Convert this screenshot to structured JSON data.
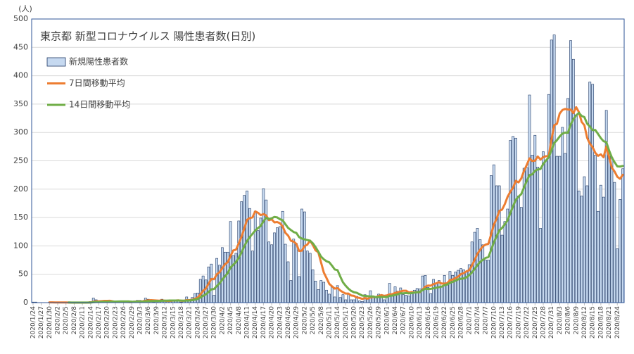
{
  "chart_data": {
    "type": "bar",
    "title": "東京都 新型コロナウイルス 陽性患者数(日別)",
    "y_axis_label": "(人)",
    "ylim": [
      0,
      500
    ],
    "yticks": [
      0,
      50,
      100,
      150,
      200,
      250,
      300,
      350,
      400,
      450,
      500
    ],
    "grid": true,
    "categories": [
      "2020/1/24",
      null,
      null,
      "2020/1/27",
      null,
      null,
      "2020/1/30",
      null,
      null,
      "2020/2/2",
      null,
      null,
      "2020/2/5",
      null,
      null,
      "2020/2/8",
      null,
      null,
      "2020/2/11",
      null,
      null,
      "2020/2/14",
      null,
      null,
      "2020/2/17",
      null,
      null,
      "2020/2/20",
      null,
      null,
      "2020/2/23",
      null,
      null,
      "2020/2/26",
      null,
      null,
      "2020/2/29",
      null,
      null,
      "2020/3/3",
      null,
      null,
      "2020/3/6",
      null,
      null,
      "2020/3/9",
      null,
      null,
      "2020/3/12",
      null,
      null,
      "2020/3/15",
      null,
      null,
      "2020/3/18",
      null,
      null,
      "2020/3/21",
      null,
      null,
      "2020/3/24",
      null,
      null,
      "2020/3/27",
      null,
      null,
      "2020/3/30",
      null,
      null,
      "2020/4/2",
      null,
      null,
      "2020/4/5",
      null,
      null,
      "2020/4/8",
      null,
      null,
      "2020/4/11",
      null,
      null,
      "2020/4/14",
      null,
      null,
      "2020/4/17",
      null,
      null,
      "2020/4/20",
      null,
      null,
      "2020/4/23",
      null,
      null,
      "2020/4/26",
      null,
      null,
      "2020/4/29",
      null,
      null,
      "2020/5/2",
      null,
      null,
      "2020/5/5",
      null,
      null,
      "2020/5/8",
      null,
      null,
      "2020/5/11",
      null,
      null,
      "2020/5/14",
      null,
      null,
      "2020/5/17",
      null,
      null,
      "2020/5/20",
      null,
      null,
      "2020/5/23",
      null,
      null,
      "2020/5/26",
      null,
      null,
      "2020/5/29",
      null,
      null,
      "2020/6/1",
      null,
      null,
      "2020/6/4",
      null,
      null,
      "2020/6/7",
      null,
      null,
      "2020/6/10",
      null,
      null,
      "2020/6/13",
      null,
      null,
      "2020/6/16",
      null,
      null,
      "2020/6/19",
      null,
      null,
      "2020/6/22",
      null,
      null,
      "2020/6/25",
      null,
      null,
      "2020/6/28",
      null,
      null,
      "2020/7/1",
      null,
      null,
      "2020/7/4",
      null,
      null,
      "2020/7/7",
      null,
      null,
      "2020/7/10",
      null,
      null,
      "2020/7/13",
      null,
      null,
      "2020/7/16",
      null,
      null,
      "2020/7/19",
      null,
      null,
      "2020/7/22",
      null,
      null,
      "2020/7/25",
      null,
      null,
      "2020/7/28",
      null,
      null,
      "2020/7/31",
      null,
      null,
      "2020/8/3",
      null,
      null,
      "2020/8/6",
      null,
      null,
      "2020/8/9",
      null,
      null,
      "2020/8/12",
      null,
      null,
      "2020/8/15",
      null,
      null,
      "2020/8/18",
      null,
      null,
      "2020/8/21",
      null,
      null,
      "2020/8/24",
      null,
      null
    ],
    "series": [
      {
        "name": "新規陽性患者数",
        "type": "bar",
        "color": "#c6d9f0",
        "edge_color": "#1f3864",
        "values": [
          1,
          1,
          0,
          0,
          0,
          0,
          1,
          1,
          0,
          0,
          0,
          0,
          0,
          0,
          0,
          0,
          0,
          0,
          0,
          0,
          1,
          2,
          8,
          5,
          0,
          3,
          3,
          1,
          3,
          1,
          0,
          1,
          3,
          0,
          1,
          1,
          2,
          3,
          4,
          4,
          2,
          8,
          6,
          3,
          1,
          2,
          2,
          6,
          4,
          2,
          5,
          4,
          3,
          4,
          1,
          4,
          10,
          4,
          9,
          16,
          17,
          41,
          47,
          40,
          63,
          68,
          13,
          78,
          66,
          97,
          89,
          89,
          143,
          83,
          87,
          144,
          178,
          189,
          197,
          166,
          91,
          161,
          127,
          149,
          201,
          181,
          107,
          102,
          123,
          132,
          134,
          161,
          103,
          72,
          39,
          112,
          104,
          46,
          165,
          160,
          91,
          87,
          58,
          38,
          23,
          39,
          36,
          22,
          15,
          28,
          10,
          30,
          9,
          14,
          5,
          15,
          5,
          5,
          11,
          3,
          2,
          14,
          8,
          21,
          10,
          11,
          15,
          14,
          5,
          13,
          34,
          12,
          28,
          20,
          26,
          14,
          13,
          12,
          18,
          22,
          25,
          24,
          47,
          48,
          27,
          16,
          41,
          35,
          39,
          29,
          48,
          31,
          55,
          48,
          54,
          57,
          60,
          58,
          54,
          67,
          107,
          124,
          131,
          111,
          102,
          75,
          75,
          224,
          243,
          206,
          206,
          119,
          143,
          165,
          286,
          293,
          290,
          188,
          168,
          237,
          238,
          366,
          260,
          295,
          239,
          131,
          266,
          250,
          367,
          463,
          472,
          258,
          258,
          309,
          263,
          360,
          462,
          429,
          331,
          197,
          188,
          222,
          206,
          389,
          385,
          260,
          161,
          207,
          186,
          339,
          258,
          256,
          212,
          95,
          182,
          236
        ]
      },
      {
        "name": "7日間移動平均",
        "type": "line",
        "color": "#ed7d31",
        "values": [
          null,
          null,
          null,
          null,
          null,
          null,
          0.4,
          0.4,
          0.3,
          0.3,
          0.3,
          0.3,
          0.3,
          0.1,
          0,
          0,
          0,
          0,
          0,
          0,
          0.1,
          0.4,
          1.6,
          2.3,
          2.3,
          2.7,
          3.1,
          3.1,
          3.3,
          2.3,
          1.6,
          1.7,
          1.7,
          1.3,
          1.3,
          1,
          1.1,
          1.6,
          2,
          2.1,
          2.4,
          3.4,
          4.1,
          4.3,
          4,
          3.7,
          3.4,
          4,
          3.4,
          2.9,
          3.1,
          3.6,
          3.7,
          4,
          3.3,
          3.3,
          4.4,
          4.3,
          5,
          6.9,
          8.7,
          14.4,
          20.6,
          24.9,
          33.3,
          41.7,
          41.3,
          50,
          53.6,
          60.7,
          67.7,
          71.4,
          82.1,
          92.1,
          93.4,
          104.6,
          116.1,
          130.4,
          145.9,
          149.1,
          150.3,
          160.9,
          158.4,
          154.3,
          156,
          153.7,
          145.3,
          146.9,
          141.4,
          142.1,
          140,
          134.3,
          123.1,
          118.1,
          109.1,
          107.6,
          103.6,
          91,
          91.6,
          99.7,
          102.4,
          109.3,
          101.6,
          92.1,
          88.9,
          70.9,
          53.1,
          43.3,
          33,
          28.7,
          24.7,
          25.7,
          21.4,
          18.3,
          15.9,
          15.9,
          12.6,
          11.9,
          9.1,
          8.3,
          6.6,
          7.9,
          6.9,
          9.1,
          9.9,
          9.9,
          11.6,
          13.3,
          12,
          12.7,
          14.6,
          14.9,
          17.3,
          18,
          19.7,
          21,
          21,
          17.9,
          18.7,
          17.9,
          18.6,
          18.3,
          23,
          28,
          30.1,
          29.9,
          32.6,
          34,
          36.1,
          33.6,
          33.6,
          34.1,
          39.7,
          40.7,
          43.4,
          46,
          50.4,
          51.9,
          55.1,
          56.9,
          65.3,
          75.3,
          85.9,
          93.1,
          99.4,
          102.4,
          103.6,
          120.3,
          137.3,
          148,
          161.6,
          164,
          173.7,
          186.6,
          195.4,
          202.6,
          214.6,
          212,
          219,
          232.4,
          242.9,
          254.3,
          249.6,
          250.3,
          257.6,
          252.3,
          256.4,
          258.1,
          258.3,
          287.3,
          312.6,
          315.3,
          333.4,
          339.6,
          341.4,
          340.4,
          340.3,
          334.1,
          344.6,
          335.9,
          318.6,
          312.7,
          290.7,
          280.3,
          274,
          263.9,
          258.7,
          261.4,
          256.3,
          275.3,
          256.6,
          238.1,
          231.3,
          221.9,
          218.3,
          225.4
        ]
      },
      {
        "name": "14日間移動平均",
        "type": "line",
        "color": "#70ad47",
        "values": [
          null,
          null,
          null,
          null,
          null,
          null,
          null,
          null,
          null,
          null,
          null,
          null,
          null,
          0.3,
          0.2,
          0.1,
          0.1,
          0.1,
          0.1,
          0.1,
          0.1,
          0.2,
          0.8,
          1.1,
          1.1,
          1.4,
          1.6,
          1.6,
          1.9,
          1.9,
          1.9,
          2,
          2.2,
          2.2,
          2.2,
          2.1,
          1.7,
          1.6,
          1.9,
          1.9,
          1.9,
          2.4,
          2.6,
          2.7,
          2.8,
          2.9,
          2.8,
          3.2,
          3.4,
          3.5,
          3.7,
          3.8,
          3.7,
          3.7,
          3.6,
          3.4,
          3.6,
          3.7,
          4.3,
          5.3,
          6.4,
          8.9,
          11.9,
          14.6,
          18.8,
          23.4,
          24.1,
          29.4,
          34,
          40.6,
          46.3,
          52.4,
          61.9,
          66.7,
          71.7,
          79.1,
          88.4,
          99.1,
          108.6,
          115.6,
          121.2,
          127.1,
          131.5,
          135.2,
          143.2,
          149.8,
          147.2,
          148.6,
          151.1,
          150.3,
          147.1,
          145.1,
          138.4,
          131.7,
          128,
          124.5,
          122.9,
          115.5,
          112.9,
          111.4,
          110.3,
          109.2,
          104.6,
          97.9,
          89.9,
          81.2,
          76.4,
          72.9,
          71.1,
          65.1,
          58.4,
          57.3,
          46.1,
          35.7,
          29.6,
          24.4,
          20.6,
          18.3,
          17.4,
          14.9,
          12.4,
          11.9,
          11.4,
          10.9,
          10.9,
          9.5,
          9.9,
          9.9,
          9.9,
          9.8,
          11.9,
          12.4,
          13.6,
          14.8,
          16.5,
          16.5,
          16.9,
          16.2,
          16.8,
          17.6,
          18.3,
          19,
          22,
          24.5,
          24,
          24.3,
          25.2,
          26.3,
          27.2,
          28.3,
          30.8,
          32.1,
          34.8,
          36.6,
          38.7,
          41.1,
          42,
          42.7,
          44.6,
          48.3,
          53,
          59.4,
          65.9,
          71.8,
          75.6,
          78.8,
          80.2,
          92.8,
          106.3,
          116.9,
          127.4,
          131.7,
          138.1,
          145.1,
          157.9,
          169.9,
          181.3,
          186.8,
          191.5,
          203.1,
          214.7,
          224.9,
          226.1,
          232.4,
          234.8,
          235.6,
          244.4,
          250.5,
          256.3,
          268.4,
          281.4,
          286.4,
          292.9,
          298,
          299.8,
          299.4,
          313.8,
          323.4,
          329.9,
          334.6,
          329.1,
          327.1,
          315.6,
          310.3,
          304.1,
          304.2,
          297.3,
          290,
          284.5,
          283,
          268.4,
          256.1,
          247.6,
          240.3,
          239.9,
          240.9
        ]
      }
    ]
  }
}
